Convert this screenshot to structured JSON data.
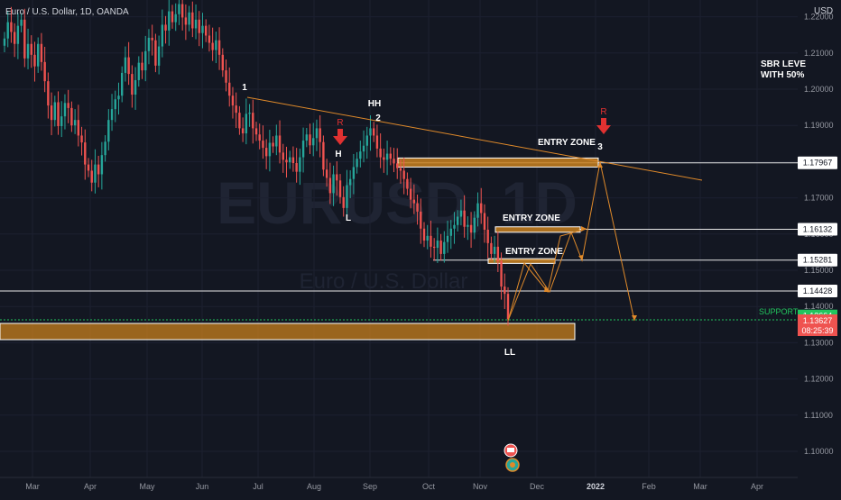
{
  "header": {
    "title": "Euro / U.S. Dollar, 1D, OANDA",
    "currency": "USD"
  },
  "watermark": {
    "symbol": "EURUSD, 1D",
    "name": "Euro / U.S. Dollar"
  },
  "colors": {
    "background": "#131722",
    "up": "#26a69a",
    "down": "#ef5350",
    "zone": "#c8801e",
    "trend": "#e08a2a",
    "text": "#d1d4dc",
    "axis": "#9598a1",
    "support": "#22c55e",
    "arrow": "#e03131"
  },
  "chart_data": {
    "type": "candlestick",
    "instrument": "EUR/USD",
    "timeframe": "1D",
    "ylim": [
      1.0925,
      1.2265
    ],
    "y_ticks": [
      "1.10000",
      "1.11000",
      "1.12000",
      "1.13000",
      "1.14000",
      "1.15000",
      "1.16000",
      "1.17000",
      "1.18000",
      "1.19000",
      "1.20000",
      "1.21000",
      "1.22000"
    ],
    "x_ticks": [
      "Mar",
      "Apr",
      "May",
      "Jun",
      "Jul",
      "Aug",
      "Sep",
      "Oct",
      "Nov",
      "Dec",
      "2022",
      "Feb",
      "Mar",
      "Apr"
    ],
    "price_levels": [
      {
        "label": "1.17967",
        "value": 1.17967
      },
      {
        "label": "1.16132",
        "value": 1.16132
      },
      {
        "label": "1.15281",
        "value": 1.15281
      },
      {
        "label": "1.14428",
        "value": 1.14428
      }
    ],
    "support": {
      "label": "SUPPORT",
      "value_label": "1.13664",
      "value": 1.13664
    },
    "last_price": {
      "value": "1.13627",
      "countdown": "08:25:39"
    },
    "zones": [
      {
        "label": "ENTRY ZONE",
        "low": 1.1785,
        "high": 1.181
      },
      {
        "label": "ENTRY ZONE",
        "low": 1.1605,
        "high": 1.162
      },
      {
        "label": "ENTRY ZONE",
        "low": 1.1519,
        "high": 1.1532
      },
      {
        "label": "",
        "low": 1.1315,
        "high": 1.1357
      }
    ],
    "annotations": [
      "1",
      "2",
      "3",
      "HH",
      "H",
      "L",
      "LL",
      "R",
      "R"
    ],
    "side_note": [
      "SBR LEVE",
      "WITH 50%"
    ],
    "closes": [
      1.214,
      1.2185,
      1.2158,
      1.2125,
      1.2175,
      1.2192,
      1.2085,
      1.2125,
      1.2095,
      1.2063,
      1.2125,
      1.2075,
      1.2022,
      1.1955,
      1.1915,
      1.1964,
      1.1898,
      1.1925,
      1.1962,
      1.1948,
      1.19,
      1.1915,
      1.1872,
      1.1853,
      1.1792,
      1.1775,
      1.1742,
      1.1792,
      1.1765,
      1.1818,
      1.1855,
      1.1915,
      1.1945,
      1.1972,
      1.1982,
      1.2045,
      1.2088,
      1.2042,
      1.1985,
      1.2025,
      1.2073,
      1.2052,
      1.2105,
      1.2142,
      1.2135,
      1.2065,
      1.2118,
      1.2178,
      1.2162,
      1.2215,
      1.2185,
      1.2207,
      1.2235,
      1.2198,
      1.2178,
      1.2212,
      1.2168,
      1.2192,
      1.2155,
      1.2175,
      1.2148,
      1.2128,
      1.2108,
      1.2135,
      1.2095,
      1.2052,
      1.2018,
      1.1982,
      1.1955,
      1.1935,
      1.1892,
      1.1878,
      1.1932,
      1.1935,
      1.1892,
      1.1875,
      1.1858,
      1.1838,
      1.1815,
      1.1852,
      1.1842,
      1.1872,
      1.1825,
      1.1805,
      1.1798,
      1.1812,
      1.1796,
      1.1772,
      1.1812,
      1.1858,
      1.1875,
      1.1845,
      1.1865,
      1.1892,
      1.1854,
      1.1778,
      1.1755,
      1.1713,
      1.1765,
      1.1748,
      1.1702,
      1.1672,
      1.1735,
      1.1752,
      1.1785,
      1.1808,
      1.1828,
      1.1844,
      1.1872,
      1.1892,
      1.1872,
      1.1836,
      1.1812,
      1.1805,
      1.1822,
      1.1808,
      1.1795,
      1.1782,
      1.1775,
      1.1752,
      1.1725,
      1.1695,
      1.1685,
      1.1662,
      1.1615,
      1.1582,
      1.1595,
      1.1565,
      1.1562,
      1.1582,
      1.1545,
      1.1578,
      1.1595,
      1.1615,
      1.1625,
      1.1648,
      1.1665,
      1.162,
      1.1625,
      1.1604,
      1.1645,
      1.1685,
      1.1658,
      1.1612,
      1.1575,
      1.1545,
      1.1565,
      1.1525,
      1.1455,
      1.1435,
      1.1365
    ]
  }
}
